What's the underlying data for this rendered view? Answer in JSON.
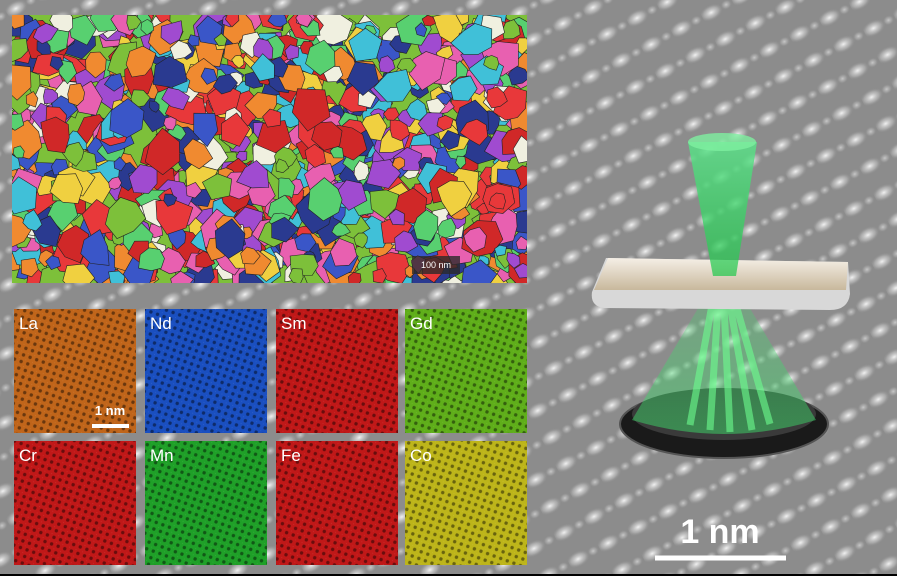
{
  "grain_map": {
    "scale_bar": "100 nm"
  },
  "maps": [
    {
      "label": "La",
      "color": "#c0651a"
    },
    {
      "label": "Nd",
      "color": "#1a4fc0"
    },
    {
      "label": "Sm",
      "color": "#c01818"
    },
    {
      "label": "Gd",
      "color": "#5fae1a"
    },
    {
      "label": "Cr",
      "color": "#c01818"
    },
    {
      "label": "Mn",
      "color": "#1fa028"
    },
    {
      "label": "Fe",
      "color": "#c01818"
    },
    {
      "label": "Co",
      "color": "#bdb51a"
    }
  ],
  "map_scale_bar": "1 nm",
  "scale_bar": "1 nm"
}
